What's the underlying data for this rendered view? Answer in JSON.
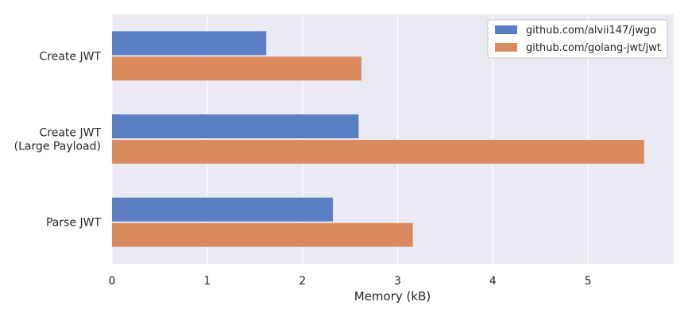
{
  "chart_data": {
    "type": "bar",
    "orientation": "horizontal",
    "categories": [
      "Create JWT",
      "Create JWT\n(Large Payload)",
      "Parse JWT"
    ],
    "series": [
      {
        "name": "github.com/alvii147/jwgo",
        "values": [
          1.62,
          2.59,
          2.32
        ],
        "color": "#5a7dc4"
      },
      {
        "name": "github.com/golang-jwt/jwt",
        "values": [
          2.62,
          5.59,
          3.16
        ],
        "color": "#d98b5f"
      }
    ],
    "xlabel": "Memory (kB)",
    "ylabel": "",
    "title": "",
    "xlim": [
      0,
      5.9
    ],
    "xticks": [
      0,
      1,
      2,
      3,
      4,
      5
    ],
    "grid": true,
    "background": "#eaeaf2",
    "legend_position": "top-right"
  }
}
